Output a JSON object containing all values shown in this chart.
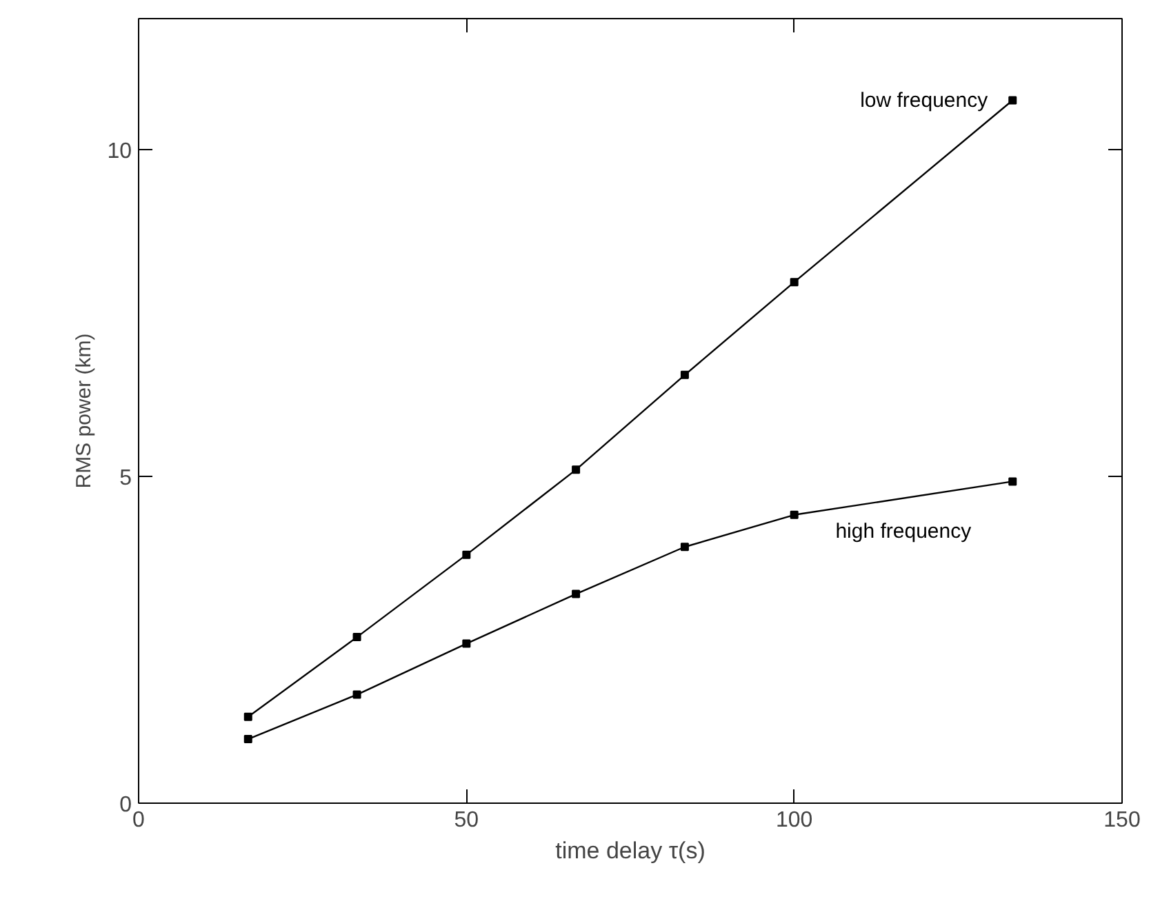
{
  "chart_data": {
    "type": "line",
    "xlabel": "time delay τ(s)",
    "ylabel": "RMS power (km)",
    "x": [
      16.7,
      33.3,
      50,
      66.7,
      83.3,
      100,
      133.3
    ],
    "series": [
      {
        "name": "low frequency",
        "color": "#000000",
        "values": [
          1.32,
          2.54,
          3.8,
          5.1,
          6.55,
          7.97,
          10.75
        ]
      },
      {
        "name": "high frequency",
        "color": "#000000",
        "values": [
          0.98,
          1.66,
          2.44,
          3.2,
          3.92,
          4.41,
          4.92
        ]
      }
    ],
    "xlim": [
      0,
      150
    ],
    "ylim": [
      0,
      12
    ],
    "xticks": [
      0,
      50,
      100,
      150
    ],
    "yticks": [
      0,
      5,
      10
    ],
    "grid": false,
    "marker": "square",
    "line_style": "solid"
  }
}
